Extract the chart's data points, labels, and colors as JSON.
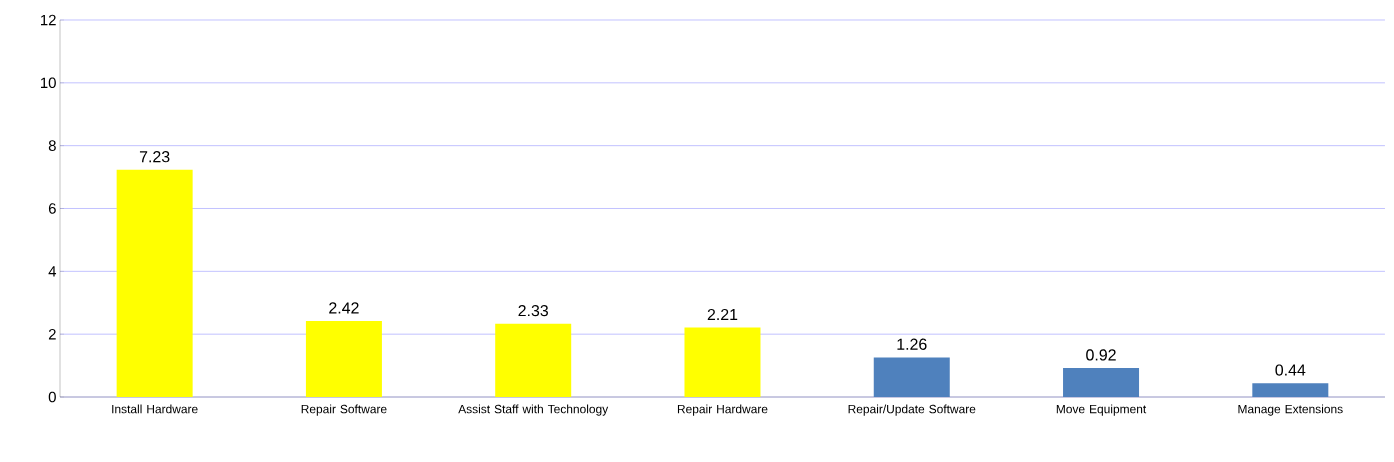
{
  "chart_data": {
    "type": "bar",
    "categories": [
      "Install Hardware",
      "Repair Software",
      "Assist Staff with Technology",
      "Repair Hardware",
      "Repair/Update Software",
      "Move Equipment",
      "Manage Extensions"
    ],
    "values": [
      7.23,
      2.42,
      2.33,
      2.21,
      1.26,
      0.92,
      0.44
    ],
    "colors": [
      "#ffff00",
      "#ffff00",
      "#ffff00",
      "#ffff00",
      "#4f81bd",
      "#4f81bd",
      "#4f81bd"
    ],
    "ylim": [
      0,
      12
    ],
    "yticks": [
      0,
      2,
      4,
      6,
      8,
      10,
      12
    ],
    "grid": "y",
    "data_labels": true
  }
}
